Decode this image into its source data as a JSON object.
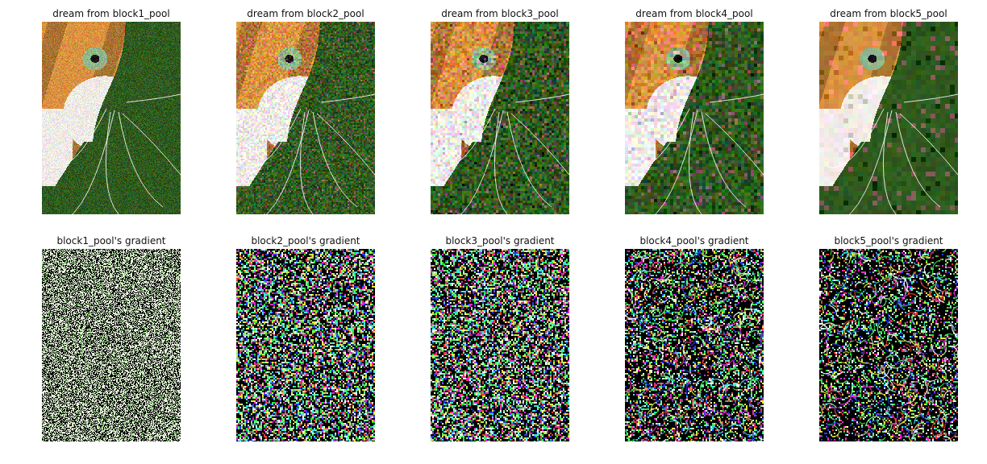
{
  "figure": {
    "rows": [
      {
        "kind": "dream",
        "panels": [
          {
            "title": "dream from block1_pool",
            "layer": "block1_pool",
            "level": 1
          },
          {
            "title": "dream from block2_pool",
            "layer": "block2_pool",
            "level": 2
          },
          {
            "title": "dream from block3_pool",
            "layer": "block3_pool",
            "level": 3
          },
          {
            "title": "dream from block4_pool",
            "layer": "block4_pool",
            "level": 4
          },
          {
            "title": "dream from block5_pool",
            "layer": "block5_pool",
            "level": 5
          }
        ]
      },
      {
        "kind": "gradient",
        "panels": [
          {
            "title": "block1_pool's gradient",
            "layer": "block1_pool",
            "level": 1
          },
          {
            "title": "block2_pool's gradient",
            "layer": "block2_pool",
            "level": 2
          },
          {
            "title": "block3_pool's gradient",
            "layer": "block3_pool",
            "level": 3
          },
          {
            "title": "block4_pool's gradient",
            "layer": "block4_pool",
            "level": 4
          },
          {
            "title": "block5_pool's gradient",
            "layer": "block5_pool",
            "level": 5
          }
        ]
      }
    ],
    "colors": {
      "background_green": "#2f5a1e",
      "fur_orange": "#d9923f",
      "fur_white": "#f1ece6",
      "eye_green": "#8fb58a",
      "nose_pink": "#e79a8a"
    }
  }
}
